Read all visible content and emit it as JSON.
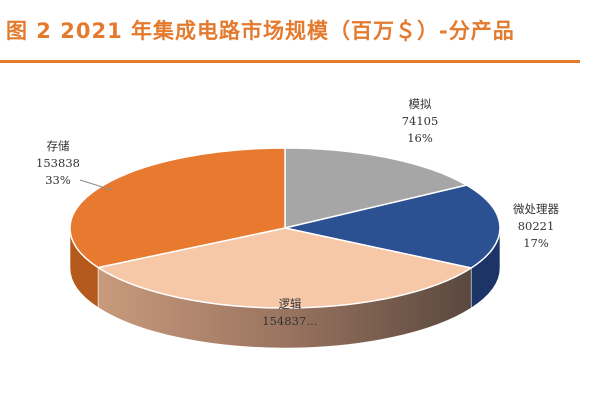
{
  "title": "图 2 2021 年集成电路市场规模（百万＄）-分产品",
  "colors": {
    "title": "#e47a2e",
    "rule": "#e47a2e"
  },
  "chart_data": {
    "type": "pie",
    "style": "3d",
    "title": "图 2 2021 年集成电路市场规模（百万＄）-分产品",
    "legend": "none",
    "slices": [
      {
        "label": "模拟",
        "value": 74105,
        "value_text": "74105",
        "percent_text": "16%",
        "color": "#a6a6a6",
        "side_color": "#7a7a7a"
      },
      {
        "label": "微处理器",
        "value": 80221,
        "value_text": "80221",
        "percent_text": "17%",
        "color": "#2c5192",
        "side_color": "#1c3566"
      },
      {
        "label": "逻辑",
        "value": 154837,
        "value_text": "154837…",
        "percent_text": "",
        "color": "#f6c8a8",
        "side_color": "#b58566"
      },
      {
        "label": "存储",
        "value": 153838,
        "value_text": "153838",
        "percent_text": "33%",
        "color": "#e87a2f",
        "side_color": "#b45a1c"
      }
    ]
  }
}
